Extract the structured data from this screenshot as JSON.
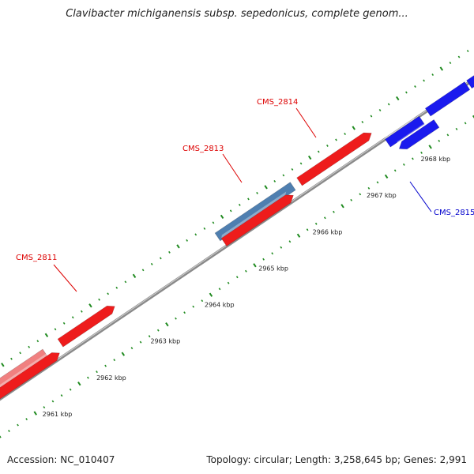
{
  "title": "Clavibacter michiganensis subsp. sepedonicus, complete genom...",
  "footer": {
    "accession": "Accession: NC_010407",
    "summary": "Topology: circular; Length: 3,258,645 bp; Genes: 2,991"
  },
  "colors": {
    "backbone": "#8a8a8a",
    "tick": "#1f8a1f",
    "gene_red": "#ee1c1c",
    "gene_pink": "#f08080",
    "gene_steelblue": "#4f7fb0",
    "gene_blue": "#1a1aee",
    "label_red": "#dd0000",
    "label_blue": "#0000cc"
  },
  "ticks": [
    {
      "kbp": 2961,
      "label": "2961 kbp"
    },
    {
      "kbp": 2962,
      "label": "2962 kbp"
    },
    {
      "kbp": 2963,
      "label": "2963 kbp"
    },
    {
      "kbp": 2964,
      "label": "2964 kbp"
    },
    {
      "kbp": 2965,
      "label": "2965 kbp"
    },
    {
      "kbp": 2966,
      "label": "2966 kbp"
    },
    {
      "kbp": 2967,
      "label": "2967 kbp"
    },
    {
      "kbp": 2968,
      "label": "2968 kbp"
    }
  ],
  "genes": [
    {
      "name": "CMS_2811",
      "labeled": true,
      "color": "gene_red",
      "label_color": "label_red"
    },
    {
      "name": "CMS_2813",
      "labeled": true,
      "color": "gene_steelblue",
      "label_color": "label_red"
    },
    {
      "name": "CMS_2814",
      "labeled": true,
      "color": "gene_red",
      "label_color": "label_red"
    },
    {
      "name": "CMS_2815",
      "labeled": true,
      "color": "gene_blue",
      "label_color": "label_blue"
    }
  ]
}
